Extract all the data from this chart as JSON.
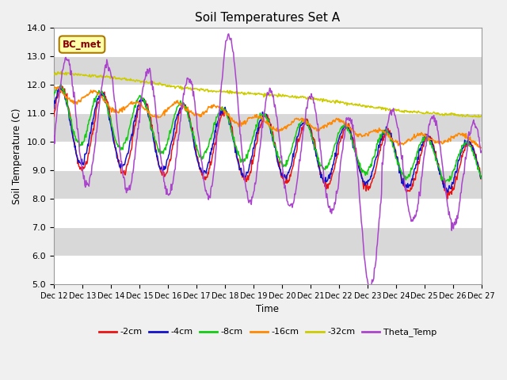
{
  "title": "Soil Temperatures Set A",
  "xlabel": "Time",
  "ylabel": "Soil Temperature (C)",
  "ylim": [
    5.0,
    14.0
  ],
  "yticks": [
    5.0,
    6.0,
    7.0,
    8.0,
    9.0,
    10.0,
    11.0,
    12.0,
    13.0,
    14.0
  ],
  "xtick_labels": [
    "Dec 12",
    "Dec 13",
    "Dec 14",
    "Dec 15",
    "Dec 16",
    "Dec 17",
    "Dec 18",
    "Dec 19",
    "Dec 20",
    "Dec 21",
    "Dec 22",
    "Dec 23",
    "Dec 24",
    "Dec 25",
    "Dec 26",
    "Dec 27"
  ],
  "n_points": 720,
  "colors": {
    "-2cm": "#ee1111",
    "-4cm": "#1111cc",
    "-8cm": "#11cc11",
    "-16cm": "#ff8800",
    "-32cm": "#cccc00",
    "Theta_Temp": "#aa44cc"
  },
  "background_color": "#d8d8d8",
  "annotation_text": "BC_met",
  "annotation_bg": "#ffffaa",
  "annotation_border": "#aa7700",
  "annotation_text_color": "#880000"
}
